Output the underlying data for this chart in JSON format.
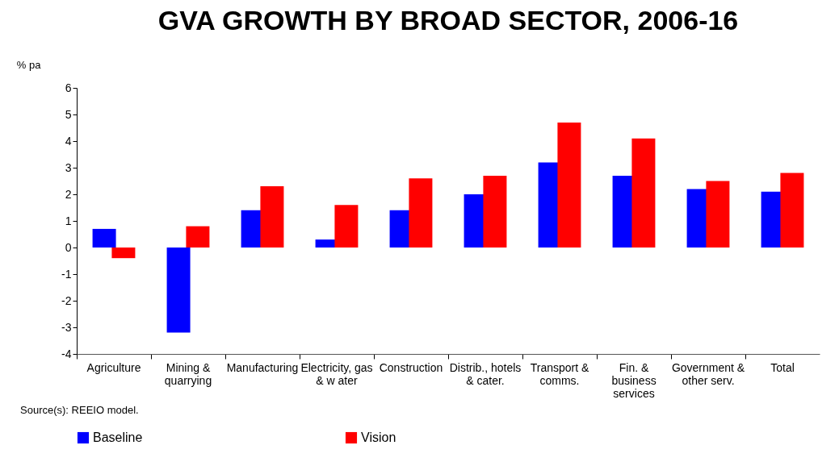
{
  "chart_data": {
    "type": "bar",
    "title": "GVA GROWTH BY BROAD SECTOR, 2006-16",
    "ylabel": "% pa",
    "categories": [
      "Agriculture",
      "Mining &\nquarrying",
      "Manufacturing",
      "Electricity, gas\n& w ater",
      "Construction",
      "Distrib., hotels\n& cater.",
      "Transport &\ncomms.",
      "Fin. &\nbusiness\nservices",
      "Government &\nother serv.",
      "Total"
    ],
    "series": [
      {
        "name": "Baseline",
        "color": "#0000ff",
        "values": [
          0.7,
          -3.2,
          1.4,
          0.3,
          1.4,
          2.0,
          3.2,
          2.7,
          2.2,
          2.1
        ]
      },
      {
        "name": "Vision",
        "color": "#ff0000",
        "values": [
          -0.4,
          0.8,
          2.3,
          1.6,
          2.6,
          2.7,
          4.7,
          4.1,
          2.5,
          2.8
        ]
      }
    ],
    "ylim": [
      -4,
      6
    ],
    "yticks": [
      -4,
      -3,
      -2,
      -1,
      0,
      1,
      2,
      3,
      4,
      5,
      6
    ],
    "grid": false,
    "legend": "bottom",
    "annotations": [
      "Source(s):  REEIO model."
    ]
  }
}
